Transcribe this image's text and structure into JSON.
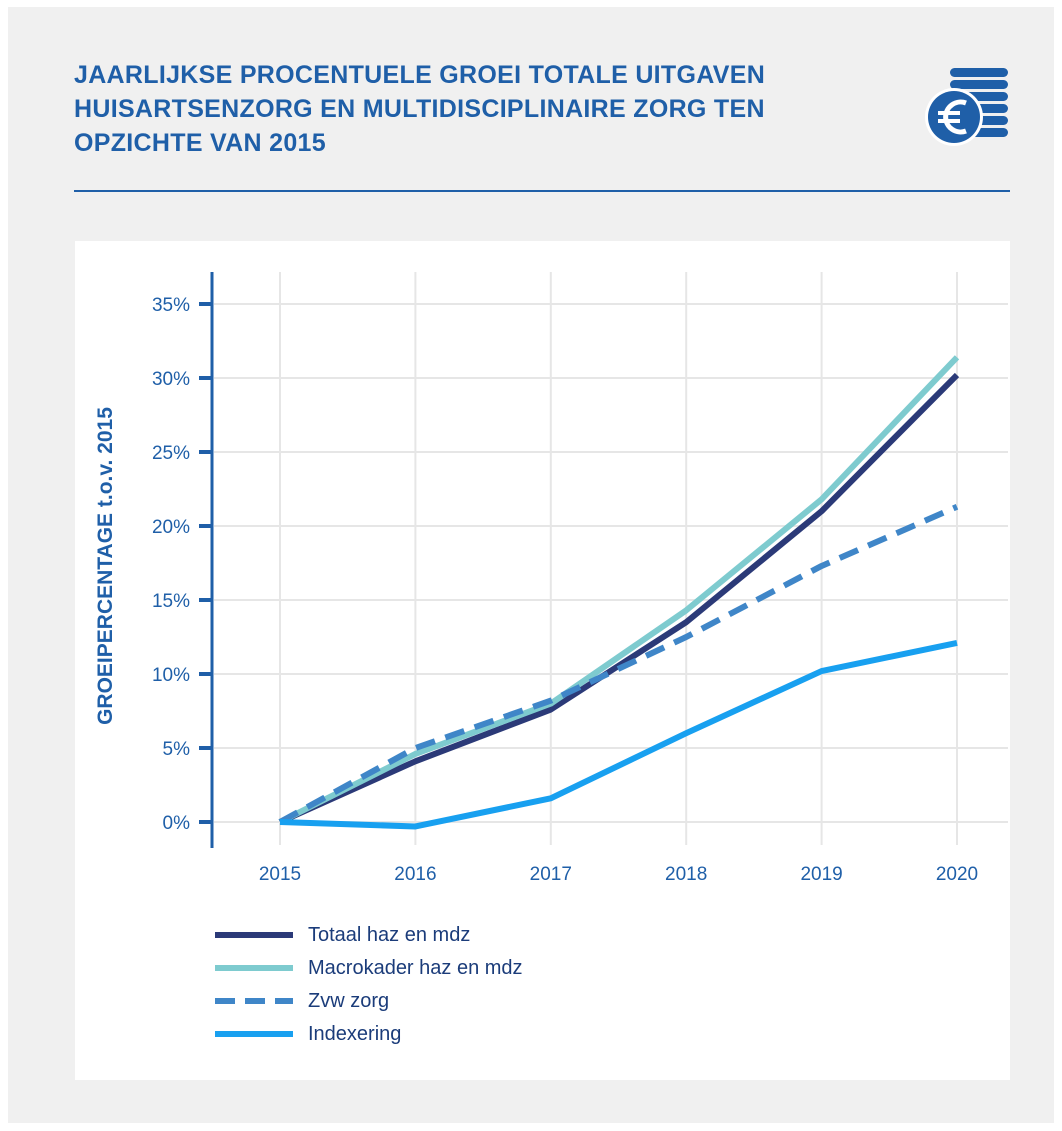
{
  "header": {
    "title_lines": [
      "JAARLIJKSE PROCENTUELE GROEI TOTALE UITGAVEN",
      "HUISARTSENZORG EN MULTIDISCIPLINAIRE ZORG TEN",
      "OPZICHTE VAN 2015"
    ],
    "icon": "euro-coins-icon"
  },
  "chart_data": {
    "type": "line",
    "title": "JAARLIJKSE PROCENTUELE GROEI TOTALE UITGAVEN HUISARTSENZORG EN MULTIDISCIPLINAIRE ZORG TEN OPZICHTE VAN 2015",
    "xlabel": "",
    "ylabel": "GROEIPERCENTAGE t.o.v. 2015",
    "x": [
      "2015",
      "2016",
      "2017",
      "2018",
      "2019",
      "2020"
    ],
    "ylim": [
      0,
      35
    ],
    "yticks": [
      0,
      5,
      10,
      15,
      20,
      25,
      30,
      35
    ],
    "ytick_labels": [
      "0%",
      "5%",
      "10%",
      "15%",
      "20%",
      "25%",
      "30%",
      "35%"
    ],
    "grid": true,
    "legend_position": "bottom-left",
    "series": [
      {
        "name": "Totaal haz en mdz",
        "values": [
          0,
          4.1,
          7.6,
          13.5,
          21.0,
          30.2
        ],
        "color": "#2b3a78",
        "style": "solid"
      },
      {
        "name": "Macrokader haz en mdz",
        "values": [
          0,
          4.6,
          8.0,
          14.3,
          21.8,
          31.4
        ],
        "color": "#7ecbcf",
        "style": "solid"
      },
      {
        "name": "Zvw zorg",
        "values": [
          0,
          5.0,
          8.2,
          12.5,
          17.3,
          21.3
        ],
        "color": "#3f86c8",
        "style": "dashed"
      },
      {
        "name": "Indexering",
        "values": [
          0,
          -0.3,
          1.6,
          6.0,
          10.2,
          12.1
        ],
        "color": "#18a0f0",
        "style": "solid"
      }
    ]
  }
}
